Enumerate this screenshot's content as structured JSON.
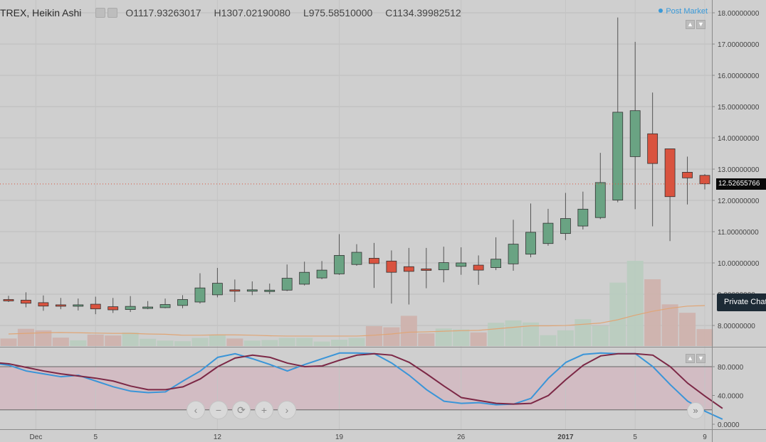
{
  "header": {
    "symbol": "TREX, Heikin Ashi",
    "open": "O1117.93263017",
    "high": "H1307.02190080",
    "low": "L975.58510000",
    "close": "C1134.39982512",
    "post_market": "Post Market"
  },
  "badges": {
    "last_price": "12.52655766",
    "private_chat": "Private Chat"
  },
  "nav_glyphs": {
    "left": "‹",
    "zoom_out": "−",
    "reset": "⟳",
    "zoom_in": "+",
    "right": "›",
    "scroll_forward": "»"
  },
  "colors": {
    "up": "#6aa383",
    "down": "#d9533f",
    "stoch_k": "#3a95d8",
    "stoch_d": "#7c2846",
    "ma": "#e0a575",
    "band": "#d2bcc3"
  },
  "chart_data": [
    {
      "type": "candlestick",
      "style": "Heikin Ashi",
      "yaxis_ticks": [
        "8.00000000",
        "9.00000000",
        "10.00000000",
        "11.00000000",
        "12.00000000",
        "13.00000000",
        "14.00000000",
        "15.00000000",
        "16.00000000",
        "17.00000000",
        "18.00000000"
      ],
      "ylim": [
        7.4,
        18.2
      ],
      "xaxis_ticks": [
        {
          "label": "Dec",
          "i": 1
        },
        {
          "label": "5",
          "i": 5
        },
        {
          "label": "12",
          "i": 12
        },
        {
          "label": "19",
          "i": 19
        },
        {
          "label": "26",
          "i": 26
        },
        {
          "label": "2017",
          "i": 32
        },
        {
          "label": "5",
          "i": 36
        },
        {
          "label": "9",
          "i": 40
        }
      ],
      "candles": [
        {
          "o": 8.83,
          "h": 8.95,
          "l": 8.75,
          "c": 8.79
        },
        {
          "o": 8.81,
          "h": 9.06,
          "l": 8.58,
          "c": 8.71
        },
        {
          "o": 8.73,
          "h": 8.96,
          "l": 8.47,
          "c": 8.62
        },
        {
          "o": 8.66,
          "h": 8.88,
          "l": 8.52,
          "c": 8.62
        },
        {
          "o": 8.62,
          "h": 8.86,
          "l": 8.48,
          "c": 8.66
        },
        {
          "o": 8.68,
          "h": 8.92,
          "l": 8.36,
          "c": 8.53
        },
        {
          "o": 8.6,
          "h": 8.88,
          "l": 8.4,
          "c": 8.5
        },
        {
          "o": 8.51,
          "h": 8.94,
          "l": 8.43,
          "c": 8.61
        },
        {
          "o": 8.58,
          "h": 8.78,
          "l": 8.52,
          "c": 8.59
        },
        {
          "o": 8.57,
          "h": 8.86,
          "l": 8.55,
          "c": 8.67
        },
        {
          "o": 8.64,
          "h": 8.97,
          "l": 8.55,
          "c": 8.83
        },
        {
          "o": 8.75,
          "h": 9.67,
          "l": 8.7,
          "c": 9.2
        },
        {
          "o": 8.98,
          "h": 9.84,
          "l": 8.9,
          "c": 9.35
        },
        {
          "o": 9.14,
          "h": 9.47,
          "l": 8.75,
          "c": 9.1
        },
        {
          "o": 9.1,
          "h": 9.41,
          "l": 8.97,
          "c": 9.14
        },
        {
          "o": 9.1,
          "h": 9.34,
          "l": 9.0,
          "c": 9.13
        },
        {
          "o": 9.13,
          "h": 9.95,
          "l": 9.1,
          "c": 9.51
        },
        {
          "o": 9.32,
          "h": 10.04,
          "l": 9.28,
          "c": 9.7
        },
        {
          "o": 9.52,
          "h": 10.06,
          "l": 9.48,
          "c": 9.77
        },
        {
          "o": 9.65,
          "h": 10.92,
          "l": 9.62,
          "c": 10.24
        },
        {
          "o": 9.95,
          "h": 10.6,
          "l": 9.91,
          "c": 10.34
        },
        {
          "o": 10.15,
          "h": 10.64,
          "l": 9.2,
          "c": 9.98
        },
        {
          "o": 10.06,
          "h": 10.4,
          "l": 8.7,
          "c": 9.7
        },
        {
          "o": 9.88,
          "h": 10.48,
          "l": 8.67,
          "c": 9.73
        },
        {
          "o": 9.81,
          "h": 10.48,
          "l": 9.19,
          "c": 9.76
        },
        {
          "o": 9.78,
          "h": 10.52,
          "l": 9.38,
          "c": 10.01
        },
        {
          "o": 9.89,
          "h": 10.5,
          "l": 9.62,
          "c": 10.0
        },
        {
          "o": 9.93,
          "h": 10.24,
          "l": 9.3,
          "c": 9.77
        },
        {
          "o": 9.85,
          "h": 10.82,
          "l": 9.77,
          "c": 10.12
        },
        {
          "o": 9.97,
          "h": 11.38,
          "l": 9.75,
          "c": 10.6
        },
        {
          "o": 10.28,
          "h": 11.9,
          "l": 10.18,
          "c": 10.98
        },
        {
          "o": 10.62,
          "h": 11.73,
          "l": 10.55,
          "c": 11.27
        },
        {
          "o": 10.94,
          "h": 12.24,
          "l": 10.73,
          "c": 11.42
        },
        {
          "o": 11.18,
          "h": 12.28,
          "l": 11.07,
          "c": 11.72
        },
        {
          "o": 11.45,
          "h": 13.52,
          "l": 11.4,
          "c": 12.57
        },
        {
          "o": 12.01,
          "h": 17.85,
          "l": 11.94,
          "c": 14.82
        },
        {
          "o": 13.4,
          "h": 17.07,
          "l": 11.72,
          "c": 14.87
        },
        {
          "o": 14.13,
          "h": 15.45,
          "l": 11.17,
          "c": 13.18
        },
        {
          "o": 13.65,
          "h": 13.65,
          "l": 10.7,
          "c": 12.12
        },
        {
          "o": 12.9,
          "h": 13.4,
          "l": 11.87,
          "c": 12.72
        },
        {
          "o": 12.8,
          "h": 12.84,
          "l": 12.35,
          "c": 12.53
        }
      ],
      "volume": [
        0.25,
        0.57,
        0.52,
        0.28,
        0.19,
        0.38,
        0.35,
        0.45,
        0.24,
        0.18,
        0.16,
        0.27,
        0.38,
        0.25,
        0.18,
        0.2,
        0.27,
        0.27,
        0.15,
        0.21,
        0.27,
        0.66,
        0.62,
        1.0,
        0.42,
        0.58,
        0.55,
        0.45,
        0.77,
        0.85,
        0.78,
        0.36,
        0.52,
        0.89,
        0.67,
        2.1,
        2.82,
        2.21,
        1.38,
        1.1,
        0.56
      ],
      "volume_unit": "relative",
      "volume_ma": [
        0.4,
        0.42,
        0.44,
        0.45,
        0.44,
        0.43,
        0.42,
        0.42,
        0.4,
        0.39,
        0.36,
        0.36,
        0.37,
        0.37,
        0.36,
        0.34,
        0.33,
        0.33,
        0.33,
        0.33,
        0.33,
        0.36,
        0.4,
        0.46,
        0.47,
        0.49,
        0.51,
        0.52,
        0.57,
        0.62,
        0.67,
        0.67,
        0.68,
        0.72,
        0.76,
        0.87,
        1.02,
        1.15,
        1.25,
        1.32,
        1.34
      ]
    },
    {
      "type": "line",
      "name": "Stochastic",
      "yaxis_ticks": [
        "0.0000",
        "40.0000",
        "80.0000"
      ],
      "ylim": [
        -5,
        108
      ],
      "bands": [
        20,
        80
      ],
      "series": [
        {
          "key": "k",
          "values": [
            85,
            82,
            74,
            70,
            66,
            68,
            60,
            52,
            46,
            44,
            45,
            60,
            74,
            93,
            98,
            91,
            83,
            74,
            83,
            91,
            99,
            99,
            98,
            85,
            68,
            48,
            32,
            29,
            30,
            27,
            28,
            36,
            64,
            86,
            97,
            99,
            98,
            98,
            80,
            55,
            32,
            18,
            7
          ]
        },
        {
          "key": "d",
          "values": [
            86,
            84,
            79,
            74,
            70,
            67,
            64,
            60,
            53,
            48,
            48,
            52,
            63,
            80,
            92,
            96,
            93,
            85,
            80,
            81,
            89,
            96,
            98,
            96,
            86,
            70,
            53,
            37,
            33,
            29,
            28,
            29,
            40,
            62,
            82,
            95,
            98,
            98,
            96,
            80,
            57,
            39,
            22
          ]
        }
      ]
    }
  ]
}
